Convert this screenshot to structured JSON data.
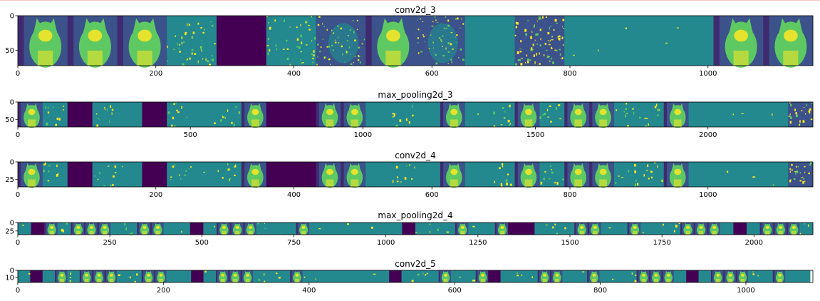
{
  "chart_data": {
    "type": "heatmap",
    "colormap": "viridis",
    "colors": {
      "dead": "#440154",
      "background": "#23898e",
      "low": "#3b528b",
      "mid": "#5ec962",
      "high": "#fde725"
    },
    "panels": [
      {
        "title": "conv2d_3",
        "xticks": [
          0,
          200,
          400,
          600,
          800,
          1000
        ],
        "yticks": [
          0,
          50
        ],
        "xlim": [
          0,
          1152
        ],
        "ylim": [
          0,
          72
        ],
        "tile_width": 72,
        "tiles": [
          "cat",
          "cat",
          "cat",
          "edge",
          "dead",
          "edge",
          "dark",
          "cat",
          "dark",
          "flat",
          "edge_dense",
          "flat",
          "flat",
          "flat",
          "cat",
          "cat"
        ]
      },
      {
        "title": "max_pooling2d_3",
        "xticks": [
          0,
          500,
          1000,
          1500,
          2000
        ],
        "yticks": [
          0,
          50
        ],
        "xlim": [
          0,
          2304
        ],
        "ylim": [
          0,
          72
        ],
        "tile_width": 72,
        "tiles": [
          "cat",
          "edge",
          "dead",
          "edge",
          "flat",
          "dead",
          "edge",
          "flat",
          "edge",
          "cat",
          "dead",
          "dead",
          "cat",
          "cat",
          "flat",
          "edge",
          "flat",
          "cat",
          "flat",
          "edge",
          "cat",
          "edge",
          "cat",
          "cat",
          "edge",
          "edge",
          "cat",
          "flat",
          "flat",
          "flat",
          "flat",
          "edge_dense"
        ]
      },
      {
        "title": "conv2d_4",
        "xticks": [
          0,
          200,
          400,
          600,
          800,
          1000
        ],
        "yticks": [
          0,
          25
        ],
        "xlim": [
          0,
          1152
        ],
        "ylim": [
          0,
          36
        ],
        "tile_width": 36,
        "tiles": [
          "cat",
          "edge",
          "dead",
          "edge",
          "flat",
          "dead",
          "edge",
          "flat",
          "edge",
          "cat",
          "dead",
          "dead",
          "cat",
          "cat",
          "flat",
          "edge",
          "flat",
          "cat",
          "flat",
          "edge",
          "cat",
          "edge",
          "cat",
          "cat",
          "edge",
          "edge",
          "cat",
          "flat",
          "flat",
          "flat",
          "flat",
          "edge_dense"
        ]
      },
      {
        "title": "max_pooling2d_4",
        "xticks": [
          0,
          250,
          500,
          750,
          1000,
          1250,
          1500,
          1750,
          2000
        ],
        "yticks": [
          0,
          25
        ],
        "xlim": [
          0,
          2160
        ],
        "ylim": [
          0,
          36
        ],
        "tile_width": 36,
        "tiles": [
          "flat",
          "dead",
          "cat",
          "edge",
          "cat",
          "cat",
          "cat",
          "flat",
          "edge",
          "cat",
          "cat",
          "flat",
          "flat",
          "dead",
          "flat",
          "cat",
          "cat",
          "cat",
          "edge",
          "flat",
          "flat",
          "cat",
          "flat",
          "flat",
          "flat",
          "flat",
          "flat",
          "flat",
          "flat",
          "dead",
          "flat",
          "edge",
          "flat",
          "cat",
          "flat",
          "flat",
          "cat",
          "dead",
          "dead",
          "flat",
          "edge",
          "flat",
          "cat",
          "cat",
          "flat",
          "flat",
          "cat",
          "flat",
          "flat",
          "edge",
          "cat",
          "cat",
          "cat",
          "flat",
          "dead",
          "flat",
          "cat",
          "cat",
          "cat",
          "edge"
        ]
      },
      {
        "title": "conv2d_5",
        "xticks": [
          0,
          200,
          400,
          600,
          800,
          1000
        ],
        "yticks": [
          0,
          10
        ],
        "xlim": [
          0,
          1092
        ],
        "ylim": [
          0,
          17
        ],
        "tile_width": 17,
        "tiles": [
          "flat",
          "dead",
          "flat",
          "cat",
          "edge",
          "cat",
          "cat",
          "cat",
          "flat",
          "edge",
          "cat",
          "cat",
          "flat",
          "flat",
          "dead",
          "flat",
          "cat",
          "cat",
          "cat",
          "edge",
          "flat",
          "flat",
          "cat",
          "flat",
          "flat",
          "flat",
          "flat",
          "flat",
          "flat",
          "flat",
          "dead",
          "flat",
          "edge",
          "flat",
          "cat",
          "flat",
          "flat",
          "cat",
          "dead",
          "flat",
          "edge",
          "flat",
          "cat",
          "cat",
          "flat",
          "flat",
          "cat",
          "flat",
          "flat",
          "edge",
          "cat",
          "cat",
          "cat",
          "flat",
          "dead",
          "flat",
          "cat",
          "cat",
          "cat",
          "edge",
          "flat",
          "cat",
          "flat",
          "flat"
        ]
      }
    ]
  }
}
